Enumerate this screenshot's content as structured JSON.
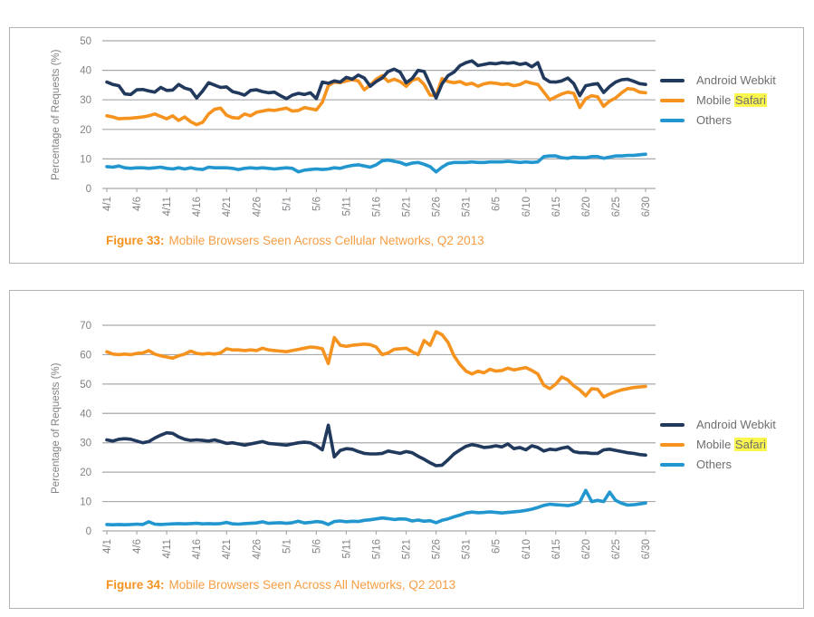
{
  "colors": {
    "android_webkit": "#20395c",
    "mobile_safari": "#f6921e",
    "others": "#2196cf",
    "grid": "#a7a9ac",
    "axis_text": "#808285",
    "legend_text": "#6d6e71",
    "caption_orange": "#f6921e",
    "search_highlight": "#fbf64d",
    "panel_border": "#b0b2b5"
  },
  "chart_data": [
    {
      "type": "line",
      "figure_label": "Figure 33:",
      "figure_caption": "Mobile Browsers Seen Across Cellular Networks, Q2 2013",
      "ylabel": "Percentage of Requests (%)",
      "ylim": [
        0,
        50
      ],
      "yticks": [
        0,
        10,
        20,
        30,
        40,
        50
      ],
      "grid": "horizontal",
      "legend_position": "right",
      "x_unit": "day",
      "x_range": "4/1 through 6/30, daily",
      "x_tick_labels": [
        "4/1",
        "4/6",
        "4/11",
        "4/16",
        "4/21",
        "4/26",
        "5/1",
        "5/6",
        "5/11",
        "5/16",
        "5/21",
        "5/26",
        "5/31",
        "6/5",
        "6/10",
        "6/15",
        "6/20",
        "6/25",
        "6/30"
      ],
      "legend": [
        {
          "label": "Android Webkit",
          "highlight": null
        },
        {
          "label": "Mobile Safari",
          "highlight": "Safari"
        },
        {
          "label": "Others",
          "highlight": null
        }
      ],
      "series": [
        {
          "name": "Android Webkit",
          "color": "#20395c",
          "values": [
            36,
            35.2,
            34.8,
            32,
            31.8,
            33.4,
            33.5,
            33,
            32.6,
            34.2,
            33.2,
            33.3,
            35.2,
            34,
            33.4,
            30.6,
            33,
            35.8,
            35,
            34.2,
            34.4,
            32.8,
            32.3,
            31.6,
            33.2,
            33.4,
            32.8,
            32.4,
            32.6,
            31.4,
            30.4,
            31.6,
            32.2,
            31.8,
            32.4,
            30.4,
            36,
            35.6,
            36.4,
            36,
            37.6,
            37,
            38.4,
            37.4,
            34.6,
            36.2,
            37.4,
            39.6,
            40.4,
            39.4,
            35.8,
            37.2,
            40,
            39.6,
            35.2,
            30.6,
            35.4,
            38.2,
            39.4,
            41.6,
            42.6,
            43.2,
            41.6,
            42,
            42.4,
            42.2,
            42.6,
            42.4,
            42.6,
            42,
            42.4,
            41.2,
            42.6,
            37.4,
            36.1,
            36,
            36.4,
            37.4,
            35.5,
            31.4,
            34.8,
            35.2,
            35.5,
            32.5,
            34.5,
            36,
            36.8,
            37,
            36.3,
            35.5,
            35.2
          ]
        },
        {
          "name": "Mobile Safari",
          "color": "#f6921e",
          "values": [
            24.6,
            24.2,
            23.6,
            23.7,
            23.8,
            24,
            24.2,
            24.6,
            25.2,
            24.4,
            23.6,
            24.6,
            23,
            24.2,
            22.6,
            21.6,
            22.4,
            25.2,
            26.8,
            27.2,
            24.8,
            24,
            23.8,
            25.2,
            24.6,
            25.8,
            26.2,
            26.6,
            26.4,
            26.8,
            27.2,
            26.2,
            26.4,
            27.4,
            27,
            26.6,
            29.2,
            34.8,
            36,
            35.8,
            36.4,
            36.8,
            36.4,
            33.4,
            35,
            37,
            38.2,
            36.2,
            37,
            36.2,
            34.6,
            36.6,
            37.2,
            35.2,
            31.6,
            31.4,
            37.2,
            36.2,
            35.8,
            36.2,
            35.2,
            35.6,
            34.6,
            35.4,
            35.8,
            35.6,
            35.2,
            35.4,
            34.8,
            35.2,
            36.2,
            35.6,
            35.2,
            32.6,
            30,
            31,
            32,
            32.6,
            32.2,
            27.4,
            30.4,
            31.4,
            31,
            27.8,
            29.6,
            30.6,
            32.4,
            33.8,
            33.6,
            32.6,
            32.4
          ]
        },
        {
          "name": "Others",
          "color": "#2196cf",
          "values": [
            7.4,
            7.2,
            7.6,
            7,
            6.8,
            7,
            7,
            6.8,
            7,
            7.2,
            6.8,
            6.6,
            7,
            6.6,
            7,
            6.6,
            6.4,
            7.2,
            7,
            7,
            7,
            6.8,
            6.4,
            6.8,
            7,
            6.8,
            7,
            6.8,
            6.6,
            6.8,
            7,
            6.8,
            5.6,
            6.2,
            6.4,
            6.6,
            6.4,
            6.6,
            7,
            6.8,
            7.4,
            7.8,
            8,
            7.6,
            7.2,
            8,
            9.4,
            9.6,
            9.2,
            8.8,
            8,
            8.6,
            8.8,
            8.2,
            7.4,
            5.6,
            7.2,
            8.4,
            8.8,
            8.8,
            8.8,
            9,
            8.8,
            8.8,
            9,
            9,
            9,
            9.2,
            9,
            8.8,
            9,
            8.8,
            9,
            10.8,
            11,
            11,
            10.4,
            10.2,
            10.6,
            10.4,
            10.4,
            10.8,
            10.8,
            10.2,
            10.6,
            11,
            11,
            11.2,
            11.2,
            11.4,
            11.6
          ]
        }
      ]
    },
    {
      "type": "line",
      "figure_label": "Figure 34:",
      "figure_caption": "Mobile Browsers Seen Across All Networks, Q2 2013",
      "ylabel": "Percentage of Requests (%)",
      "ylim": [
        0,
        70
      ],
      "yticks": [
        0,
        10,
        20,
        30,
        40,
        50,
        60,
        70
      ],
      "grid": "horizontal",
      "legend_position": "right",
      "x_unit": "day",
      "x_range": "4/1 through 6/30, daily",
      "x_tick_labels": [
        "4/1",
        "4/6",
        "4/11",
        "4/16",
        "4/21",
        "4/26",
        "5/1",
        "5/6",
        "5/11",
        "5/16",
        "5/21",
        "5/26",
        "5/31",
        "6/5",
        "6/10",
        "6/15",
        "6/20",
        "6/25",
        "6/30"
      ],
      "legend": [
        {
          "label": "Android Webkit",
          "highlight": null
        },
        {
          "label": "Mobile Safari",
          "highlight": "Safari"
        },
        {
          "label": "Others",
          "highlight": null
        }
      ],
      "series": [
        {
          "name": "Android Webkit",
          "color": "#20395c",
          "values": [
            31,
            30.6,
            31.2,
            31.4,
            31.2,
            30.6,
            30,
            30.4,
            31.6,
            32.6,
            33.4,
            33.2,
            32,
            31.2,
            30.8,
            31,
            30.8,
            30.6,
            31,
            30.4,
            29.8,
            30,
            29.6,
            29.2,
            29.6,
            30,
            30.4,
            29.8,
            29.6,
            29.4,
            29.2,
            29.6,
            30,
            30.2,
            30,
            29,
            27.6,
            36,
            25.2,
            27.4,
            28,
            27.8,
            27,
            26.4,
            26.2,
            26.2,
            26.4,
            27.2,
            26.8,
            26.4,
            27,
            26.6,
            25.4,
            24.4,
            23.2,
            22.2,
            22.4,
            24.2,
            26.2,
            27.6,
            28.8,
            29.4,
            29,
            28.4,
            28.6,
            29,
            28.6,
            29.6,
            28,
            28.4,
            27.6,
            29,
            28.4,
            27.2,
            27.8,
            27.6,
            28.2,
            28.6,
            27,
            26.6,
            26.6,
            26.4,
            26.4,
            27.6,
            27.8,
            27.4,
            27,
            26.6,
            26.4,
            26,
            25.8
          ]
        },
        {
          "name": "Mobile Safari",
          "color": "#f6921e",
          "values": [
            61,
            60.2,
            60,
            60.2,
            60,
            60.4,
            60.6,
            61.4,
            60.2,
            59.6,
            59.2,
            58.8,
            59.6,
            60.2,
            61.2,
            60.4,
            60.2,
            60.4,
            60.2,
            60.6,
            62,
            61.6,
            61.6,
            61.4,
            61.6,
            61.4,
            62.2,
            61.6,
            61.4,
            61.2,
            61,
            61.4,
            61.8,
            62.2,
            62.6,
            62.4,
            62,
            57,
            65.8,
            63.2,
            62.8,
            63.2,
            63.4,
            63.6,
            63.4,
            62.6,
            60,
            60.6,
            61.8,
            62,
            62.2,
            61,
            60,
            64.8,
            63.2,
            67.8,
            66.8,
            64.2,
            59.6,
            56.6,
            54.4,
            53.4,
            54.4,
            53.8,
            55,
            54.4,
            54.6,
            55.4,
            54.8,
            55.2,
            55.6,
            54.6,
            53.4,
            49.6,
            48.4,
            50,
            52.4,
            51.4,
            49.4,
            48,
            46,
            48.4,
            48.2,
            45.6,
            46.6,
            47.4,
            48,
            48.4,
            48.8,
            49,
            49.2
          ]
        },
        {
          "name": "Others",
          "color": "#2196cf",
          "values": [
            2.2,
            2.1,
            2.2,
            2.1,
            2.2,
            2.3,
            2.2,
            3.1,
            2.3,
            2.2,
            2.3,
            2.4,
            2.5,
            2.4,
            2.5,
            2.6,
            2.4,
            2.5,
            2.4,
            2.5,
            2.9,
            2.4,
            2.3,
            2.5,
            2.6,
            2.7,
            3.1,
            2.6,
            2.7,
            2.8,
            2.6,
            2.8,
            3.3,
            2.7,
            2.9,
            3.2,
            3,
            2.2,
            3.2,
            3.4,
            3.1,
            3.3,
            3.2,
            3.6,
            3.8,
            4.1,
            4.4,
            4.2,
            3.9,
            4.1,
            4,
            3.4,
            3.7,
            3.3,
            3.5,
            2.8,
            3.6,
            4.1,
            4.8,
            5.4,
            6.1,
            6.4,
            6.2,
            6.3,
            6.5,
            6.3,
            6.1,
            6.3,
            6.5,
            6.7,
            7,
            7.4,
            8,
            8.7,
            9.1,
            8.9,
            8.8,
            8.6,
            9,
            9.8,
            13.8,
            10,
            10.4,
            10,
            13.2,
            10.4,
            9.4,
            8.8,
            8.9,
            9.2,
            9.5
          ]
        }
      ]
    }
  ]
}
